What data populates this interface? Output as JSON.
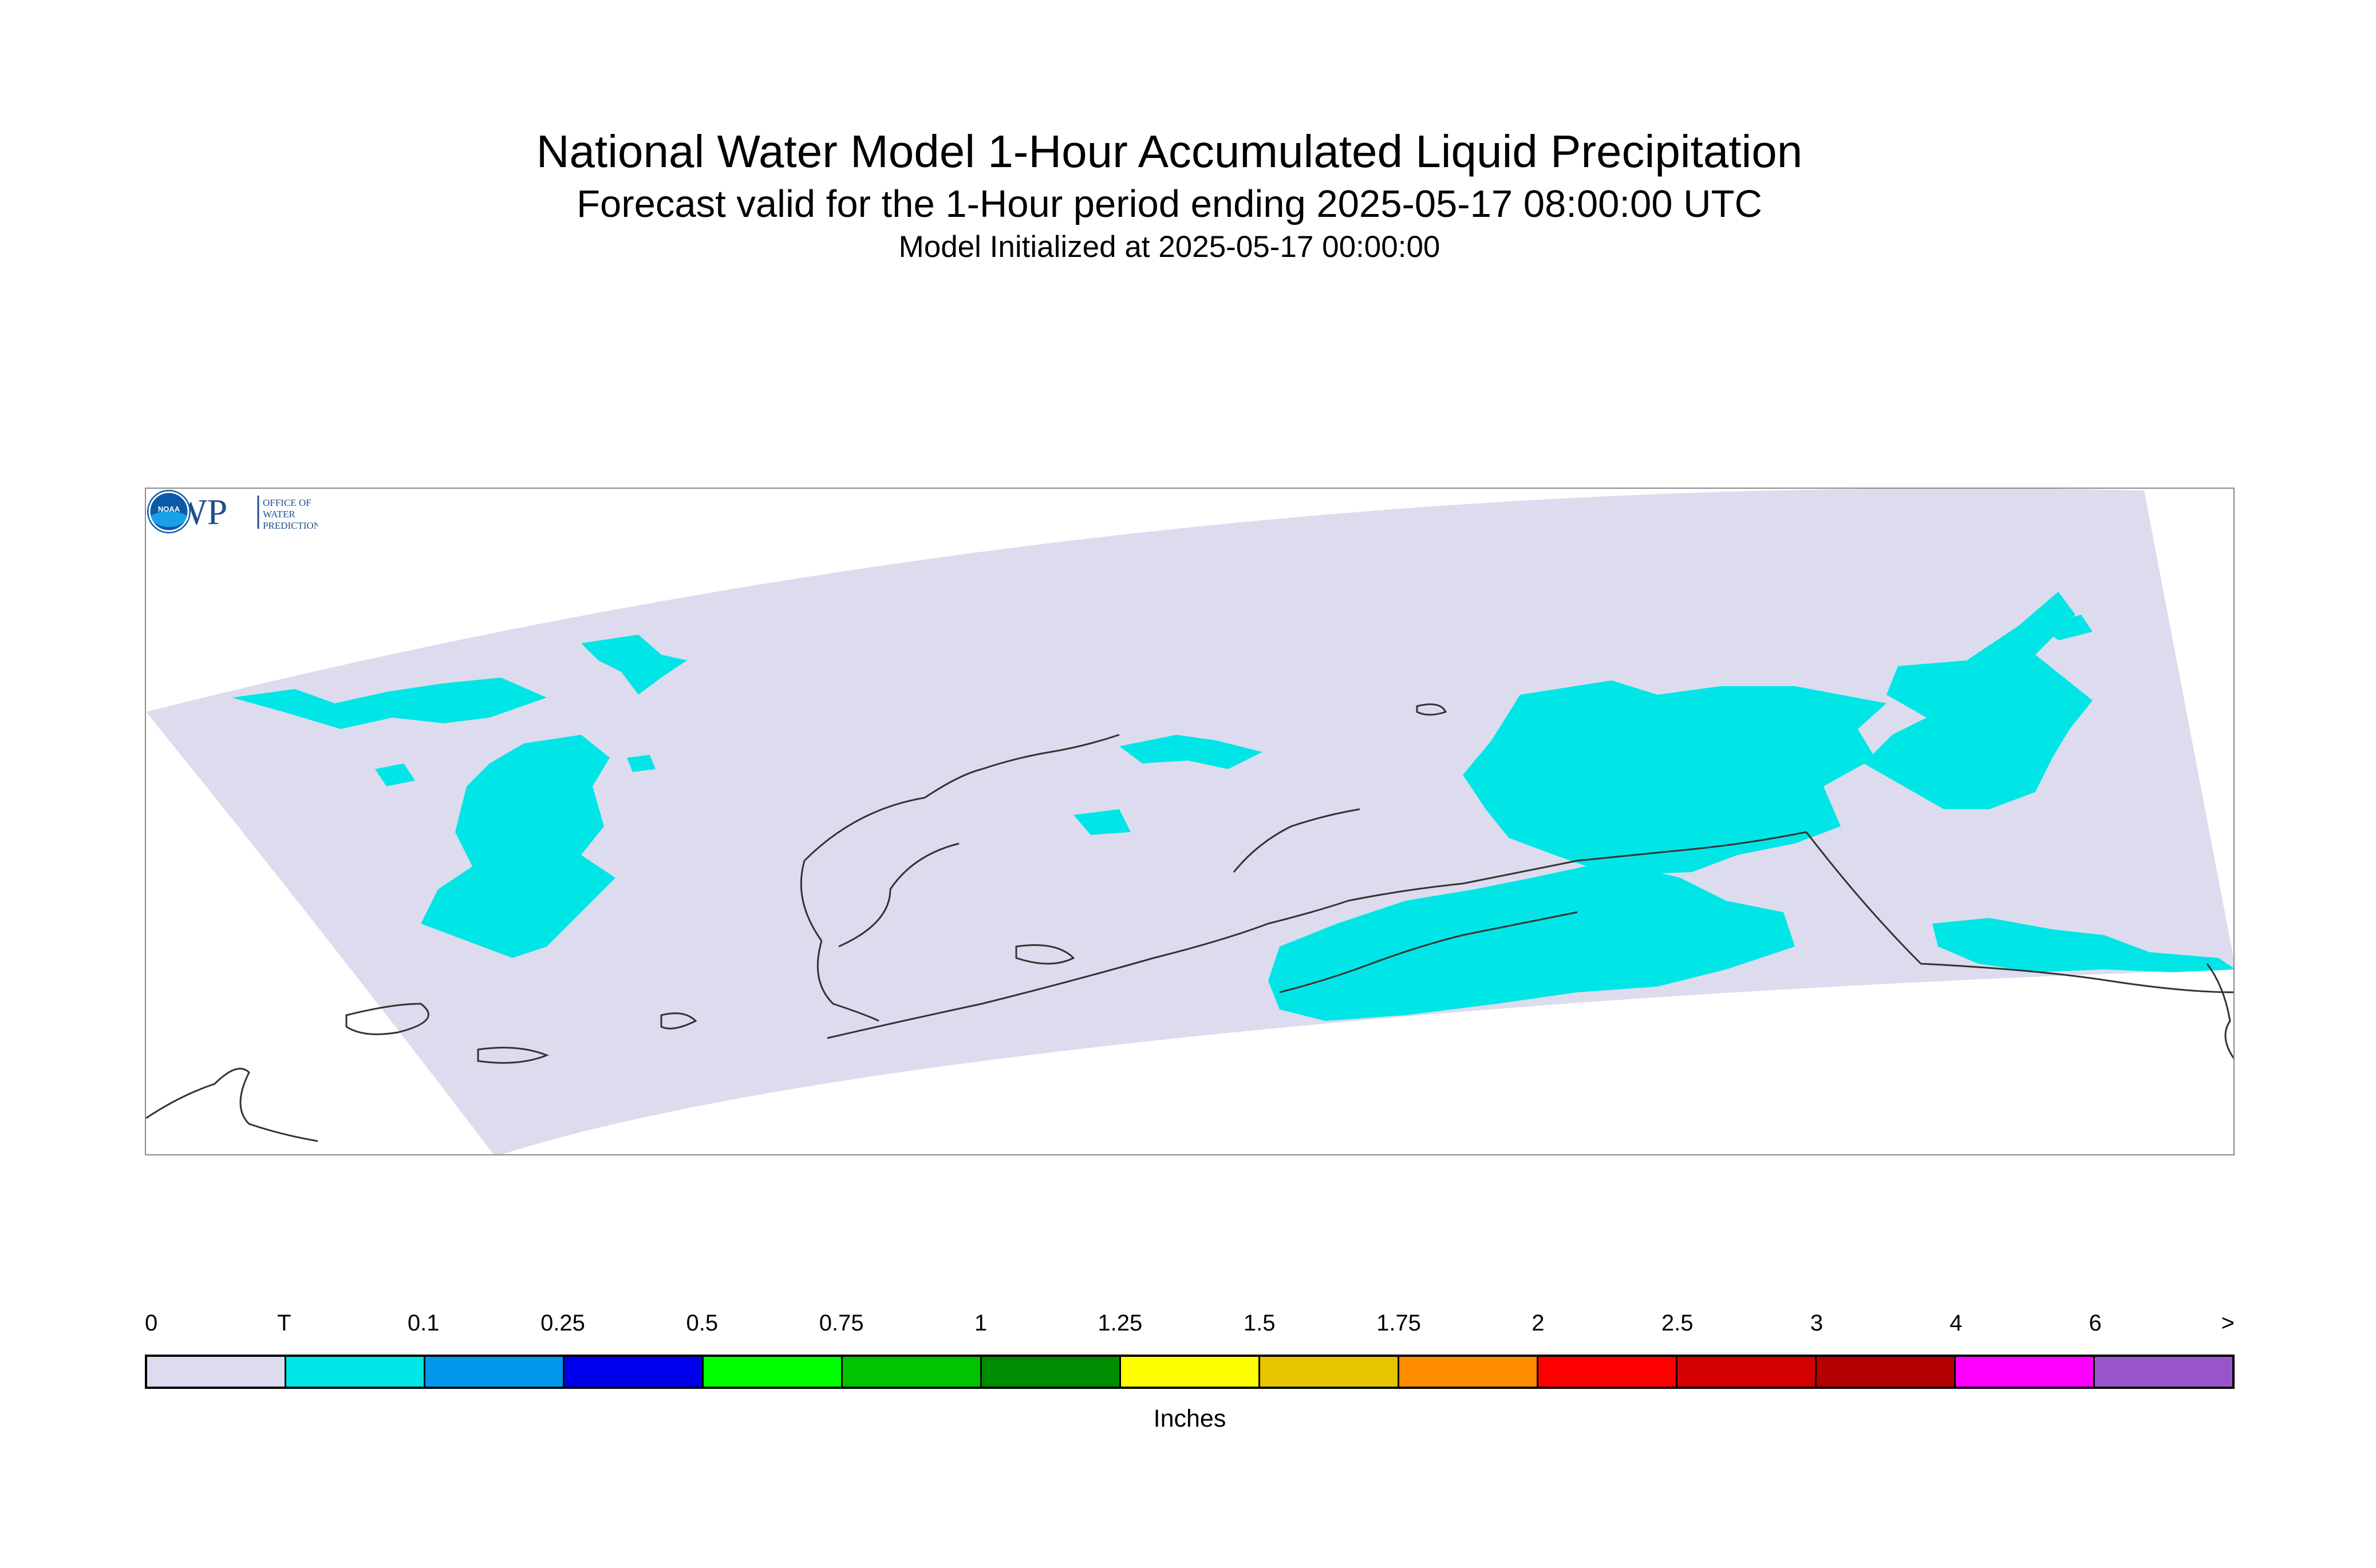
{
  "title": {
    "main": "National Water Model 1-Hour Accumulated Liquid Precipitation",
    "subtitle": "Forecast valid for the 1-Hour period ending 2025-05-17 08:00:00 UTC",
    "initialized": "Model Initialized at 2025-05-17 00:00:00"
  },
  "logos": {
    "owp": {
      "letters": "OWP",
      "line1": "OFFICE OF",
      "line2": "WATER",
      "line3": "PREDICTION"
    },
    "noaa": {
      "letters": "NOAA"
    }
  },
  "map": {
    "region": "Alaska domain",
    "colors": {
      "domain_fill": "#dcdcee",
      "trace_precip": "#00e6e6",
      "coastline": "#333333",
      "frame": "#8a8a8a"
    }
  },
  "legend": {
    "units": "Inches",
    "ticks": [
      "0",
      "T",
      "0.1",
      "0.25",
      "0.5",
      "0.75",
      "1",
      "1.25",
      "1.5",
      "1.75",
      "2",
      "2.5",
      "3",
      "4",
      "6",
      ">"
    ],
    "colors": [
      "#dcdcee",
      "#00e6e6",
      "#0099ee",
      "#0000ee",
      "#00ff00",
      "#00c400",
      "#008c00",
      "#ffff00",
      "#e6c400",
      "#ff8c00",
      "#ff0000",
      "#d40000",
      "#b40000",
      "#ff00ff",
      "#9955cc"
    ]
  }
}
